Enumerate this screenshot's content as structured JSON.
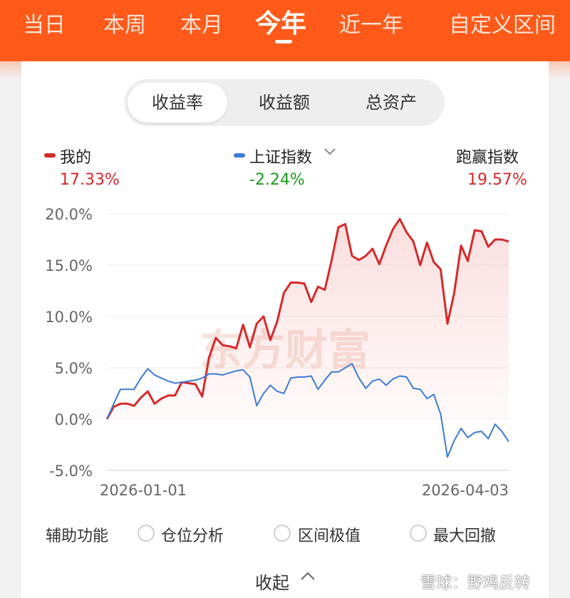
{
  "topbar": {
    "tabs": [
      "当日",
      "本周",
      "本月",
      "今年",
      "近一年",
      "自定义区间"
    ],
    "active_index": 3,
    "background": "#ff5a1a"
  },
  "segment": {
    "items": [
      "收益率",
      "收益额",
      "总资产"
    ],
    "active_index": 0
  },
  "legend": {
    "mine": {
      "name": "我的",
      "value": "17.33%",
      "color": "#d42a2a"
    },
    "index": {
      "name": "上证指数",
      "value": "-2.24%",
      "color": "#3d7bd6",
      "value_color": "#1a9a1a",
      "icon": "chevron-down-icon"
    },
    "beat": {
      "name": "跑赢指数",
      "value": "19.57%",
      "color": "#d42a2a"
    }
  },
  "chart_data": {
    "type": "line",
    "x_tick_labels": [
      "2026-01-01",
      "2026-04-03"
    ],
    "y_tick_labels": [
      "20.0%",
      "15.0%",
      "10.0%",
      "5.0%",
      "0.0%",
      "-5.0%"
    ],
    "ylim": [
      -5,
      20
    ],
    "grid": true,
    "watermark": "东方财富",
    "series": [
      {
        "name": "我的",
        "color": "#d42a2a",
        "fill": true,
        "values": [
          0.0,
          1.2,
          1.5,
          1.5,
          1.3,
          2.1,
          2.7,
          1.5,
          2.0,
          2.3,
          2.3,
          3.6,
          3.5,
          3.4,
          2.2,
          6.0,
          7.9,
          7.2,
          7.1,
          6.9,
          9.2,
          7.0,
          9.3,
          10.0,
          7.7,
          9.5,
          12.3,
          13.3,
          13.3,
          13.2,
          11.4,
          12.9,
          12.6,
          15.5,
          18.7,
          19.0,
          15.9,
          15.5,
          15.9,
          16.6,
          15.1,
          16.9,
          18.5,
          19.5,
          18.2,
          17.3,
          15.0,
          17.2,
          15.3,
          14.6,
          9.3,
          12.3,
          16.9,
          15.4,
          18.4,
          18.3,
          16.8,
          17.5,
          17.5,
          17.3
        ]
      },
      {
        "name": "上证指数",
        "color": "#3d7bd6",
        "fill": false,
        "values": [
          0.0,
          1.5,
          2.9,
          2.9,
          2.9,
          4.0,
          4.9,
          4.3,
          4.0,
          3.7,
          3.5,
          3.6,
          3.7,
          3.8,
          4.0,
          4.4,
          4.4,
          4.3,
          4.5,
          4.7,
          4.8,
          4.1,
          1.3,
          2.5,
          3.3,
          2.7,
          2.5,
          4.0,
          4.1,
          4.1,
          4.2,
          2.9,
          3.8,
          4.6,
          4.6,
          5.0,
          5.4,
          4.0,
          3.0,
          3.7,
          3.9,
          3.3,
          3.9,
          4.2,
          4.1,
          3.0,
          2.9,
          2.0,
          2.4,
          0.5,
          -3.7,
          -2.1,
          -0.9,
          -1.8,
          -1.3,
          -1.2,
          -1.9,
          -0.5,
          -1.2,
          -2.2
        ]
      }
    ]
  },
  "options": {
    "label": "辅助功能",
    "items": [
      "仓位分析",
      "区间极值",
      "最大回撤"
    ]
  },
  "footer": {
    "collapse": "收起",
    "watermark": "雪球：野鸡反转"
  }
}
